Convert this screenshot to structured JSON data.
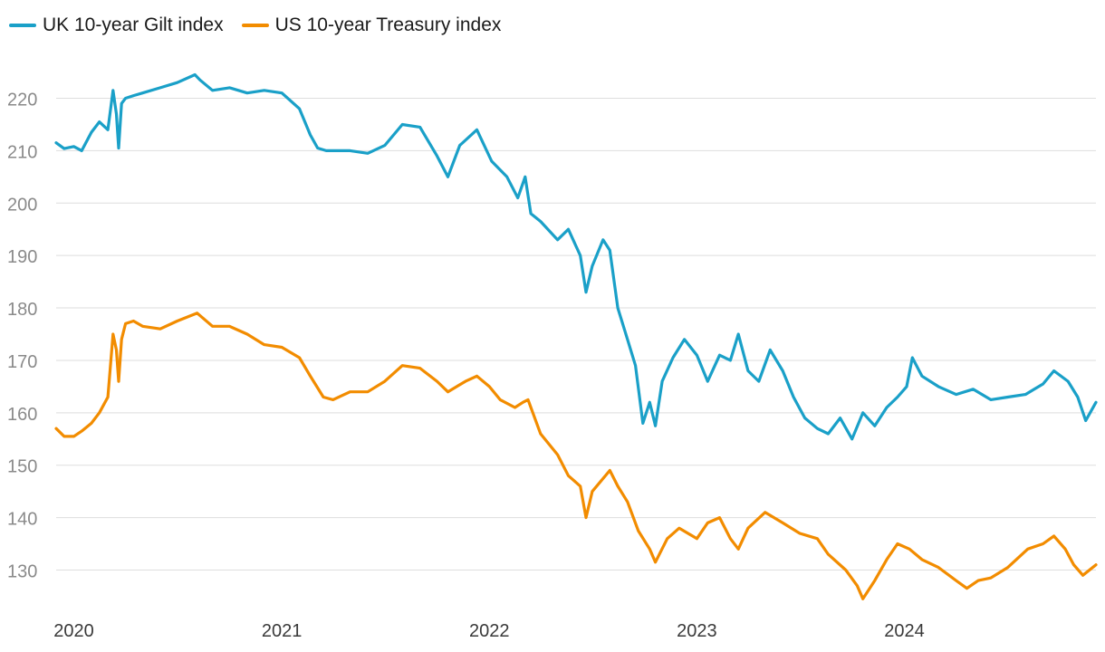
{
  "chart_data": {
    "type": "line",
    "title": "",
    "xlabel": "",
    "ylabel": "",
    "x_ticks": [
      "2020",
      "2021",
      "2022",
      "2023",
      "2024"
    ],
    "y_ticks": [
      130,
      140,
      150,
      160,
      170,
      180,
      190,
      200,
      210,
      220
    ],
    "ylim": [
      123,
      227
    ],
    "xlim": [
      "2019-12-01",
      "2024-12-03"
    ],
    "grid": "horizontal",
    "legend_position": "top-left",
    "series": [
      {
        "name": "UK 10-year Gilt index",
        "color": "#1aa0c8",
        "points": [
          [
            "2019-12-01",
            211.5
          ],
          [
            "2019-12-15",
            210.4
          ],
          [
            "2020-01-01",
            210.8
          ],
          [
            "2020-01-15",
            210.0
          ],
          [
            "2020-02-01",
            213.5
          ],
          [
            "2020-02-15",
            215.5
          ],
          [
            "2020-03-01",
            214.0
          ],
          [
            "2020-03-10",
            221.5
          ],
          [
            "2020-03-16",
            217.0
          ],
          [
            "2020-03-20",
            210.5
          ],
          [
            "2020-03-25",
            219.0
          ],
          [
            "2020-04-01",
            220.0
          ],
          [
            "2020-04-15",
            220.5
          ],
          [
            "2020-05-01",
            221.0
          ],
          [
            "2020-06-01",
            222.0
          ],
          [
            "2020-07-01",
            223.0
          ],
          [
            "2020-08-01",
            224.5
          ],
          [
            "2020-08-10",
            223.5
          ],
          [
            "2020-09-01",
            221.5
          ],
          [
            "2020-10-01",
            222.0
          ],
          [
            "2020-11-01",
            221.0
          ],
          [
            "2020-12-01",
            221.5
          ],
          [
            "2021-01-01",
            221.0
          ],
          [
            "2021-02-01",
            218.0
          ],
          [
            "2021-02-20",
            213.0
          ],
          [
            "2021-03-05",
            210.5
          ],
          [
            "2021-03-20",
            210.0
          ],
          [
            "2021-05-01",
            210.0
          ],
          [
            "2021-06-01",
            209.5
          ],
          [
            "2021-07-01",
            211.0
          ],
          [
            "2021-08-01",
            215.0
          ],
          [
            "2021-09-01",
            214.5
          ],
          [
            "2021-10-01",
            209.0
          ],
          [
            "2021-10-20",
            205.0
          ],
          [
            "2021-11-10",
            211.0
          ],
          [
            "2021-12-10",
            214.0
          ],
          [
            "2022-01-05",
            208.0
          ],
          [
            "2022-02-01",
            205.0
          ],
          [
            "2022-02-20",
            201.0
          ],
          [
            "2022-03-05",
            205.0
          ],
          [
            "2022-03-15",
            198.0
          ],
          [
            "2022-04-01",
            196.5
          ],
          [
            "2022-05-01",
            193.0
          ],
          [
            "2022-05-20",
            195.0
          ],
          [
            "2022-06-10",
            190.0
          ],
          [
            "2022-06-20",
            183.0
          ],
          [
            "2022-07-01",
            188.0
          ],
          [
            "2022-07-20",
            193.0
          ],
          [
            "2022-08-01",
            191.0
          ],
          [
            "2022-08-15",
            180.0
          ],
          [
            "2022-09-01",
            174.0
          ],
          [
            "2022-09-15",
            169.0
          ],
          [
            "2022-09-28",
            158.0
          ],
          [
            "2022-10-10",
            162.0
          ],
          [
            "2022-10-20",
            157.5
          ],
          [
            "2022-11-01",
            166.0
          ],
          [
            "2022-11-20",
            170.5
          ],
          [
            "2022-12-10",
            174.0
          ],
          [
            "2023-01-01",
            171.0
          ],
          [
            "2023-01-20",
            166.0
          ],
          [
            "2023-02-10",
            171.0
          ],
          [
            "2023-03-01",
            170.0
          ],
          [
            "2023-03-15",
            175.0
          ],
          [
            "2023-04-01",
            168.0
          ],
          [
            "2023-04-20",
            166.0
          ],
          [
            "2023-05-10",
            172.0
          ],
          [
            "2023-06-01",
            168.0
          ],
          [
            "2023-06-20",
            163.0
          ],
          [
            "2023-07-10",
            159.0
          ],
          [
            "2023-08-01",
            157.0
          ],
          [
            "2023-08-20",
            156.0
          ],
          [
            "2023-09-10",
            159.0
          ],
          [
            "2023-10-01",
            155.0
          ],
          [
            "2023-10-20",
            160.0
          ],
          [
            "2023-11-10",
            157.5
          ],
          [
            "2023-12-01",
            161.0
          ],
          [
            "2023-12-20",
            163.0
          ],
          [
            "2024-01-05",
            165.0
          ],
          [
            "2024-01-15",
            170.5
          ],
          [
            "2024-02-01",
            167.0
          ],
          [
            "2024-03-01",
            165.0
          ],
          [
            "2024-04-01",
            163.5
          ],
          [
            "2024-05-01",
            164.5
          ],
          [
            "2024-06-01",
            162.5
          ],
          [
            "2024-07-01",
            163.0
          ],
          [
            "2024-08-01",
            163.5
          ],
          [
            "2024-09-01",
            165.5
          ],
          [
            "2024-09-20",
            168.0
          ],
          [
            "2024-10-15",
            166.0
          ],
          [
            "2024-11-01",
            163.0
          ],
          [
            "2024-11-15",
            158.5
          ],
          [
            "2024-12-03",
            162.0
          ]
        ]
      },
      {
        "name": "US 10-year Treasury index",
        "color": "#f28c00",
        "points": [
          [
            "2019-12-01",
            157.0
          ],
          [
            "2019-12-15",
            155.5
          ],
          [
            "2020-01-01",
            155.5
          ],
          [
            "2020-01-15",
            156.5
          ],
          [
            "2020-02-01",
            158.0
          ],
          [
            "2020-02-15",
            160.0
          ],
          [
            "2020-03-01",
            163.0
          ],
          [
            "2020-03-10",
            175.0
          ],
          [
            "2020-03-16",
            172.0
          ],
          [
            "2020-03-20",
            166.0
          ],
          [
            "2020-03-25",
            174.0
          ],
          [
            "2020-04-01",
            177.0
          ],
          [
            "2020-04-15",
            177.5
          ],
          [
            "2020-05-01",
            176.5
          ],
          [
            "2020-06-01",
            176.0
          ],
          [
            "2020-07-01",
            177.5
          ],
          [
            "2020-08-05",
            179.0
          ],
          [
            "2020-09-01",
            176.5
          ],
          [
            "2020-10-01",
            176.5
          ],
          [
            "2020-11-01",
            175.0
          ],
          [
            "2020-12-01",
            173.0
          ],
          [
            "2021-01-01",
            172.5
          ],
          [
            "2021-02-01",
            170.5
          ],
          [
            "2021-02-20",
            167.0
          ],
          [
            "2021-03-15",
            163.0
          ],
          [
            "2021-04-01",
            162.5
          ],
          [
            "2021-05-01",
            164.0
          ],
          [
            "2021-06-01",
            164.0
          ],
          [
            "2021-07-01",
            166.0
          ],
          [
            "2021-08-01",
            169.0
          ],
          [
            "2021-09-01",
            168.5
          ],
          [
            "2021-10-01",
            166.0
          ],
          [
            "2021-10-20",
            164.0
          ],
          [
            "2021-11-20",
            166.0
          ],
          [
            "2021-12-10",
            167.0
          ],
          [
            "2022-01-01",
            165.0
          ],
          [
            "2022-01-20",
            162.5
          ],
          [
            "2022-02-15",
            161.0
          ],
          [
            "2022-03-01",
            162.0
          ],
          [
            "2022-03-10",
            162.5
          ],
          [
            "2022-04-01",
            156.0
          ],
          [
            "2022-05-01",
            152.0
          ],
          [
            "2022-05-20",
            148.0
          ],
          [
            "2022-06-10",
            146.0
          ],
          [
            "2022-06-20",
            140.0
          ],
          [
            "2022-07-01",
            145.0
          ],
          [
            "2022-08-01",
            149.0
          ],
          [
            "2022-08-15",
            146.0
          ],
          [
            "2022-09-01",
            143.0
          ],
          [
            "2022-09-20",
            137.5
          ],
          [
            "2022-10-10",
            134.0
          ],
          [
            "2022-10-20",
            131.5
          ],
          [
            "2022-11-10",
            136.0
          ],
          [
            "2022-12-01",
            138.0
          ],
          [
            "2023-01-01",
            136.0
          ],
          [
            "2023-01-20",
            139.0
          ],
          [
            "2023-02-10",
            140.0
          ],
          [
            "2023-03-01",
            136.0
          ],
          [
            "2023-03-15",
            134.0
          ],
          [
            "2023-04-01",
            138.0
          ],
          [
            "2023-05-01",
            141.0
          ],
          [
            "2023-06-01",
            139.0
          ],
          [
            "2023-07-01",
            137.0
          ],
          [
            "2023-08-01",
            136.0
          ],
          [
            "2023-08-20",
            133.0
          ],
          [
            "2023-09-20",
            130.0
          ],
          [
            "2023-10-10",
            127.0
          ],
          [
            "2023-10-20",
            124.5
          ],
          [
            "2023-11-10",
            128.0
          ],
          [
            "2023-12-01",
            132.0
          ],
          [
            "2023-12-20",
            135.0
          ],
          [
            "2024-01-10",
            134.0
          ],
          [
            "2024-02-01",
            132.0
          ],
          [
            "2024-03-01",
            130.5
          ],
          [
            "2024-04-01",
            128.0
          ],
          [
            "2024-04-20",
            126.5
          ],
          [
            "2024-05-10",
            128.0
          ],
          [
            "2024-06-01",
            128.5
          ],
          [
            "2024-07-01",
            130.5
          ],
          [
            "2024-08-05",
            134.0
          ],
          [
            "2024-09-01",
            135.0
          ],
          [
            "2024-09-20",
            136.5
          ],
          [
            "2024-10-10",
            134.0
          ],
          [
            "2024-10-25",
            131.0
          ],
          [
            "2024-11-10",
            129.0
          ],
          [
            "2024-12-03",
            131.0
          ]
        ]
      }
    ]
  }
}
